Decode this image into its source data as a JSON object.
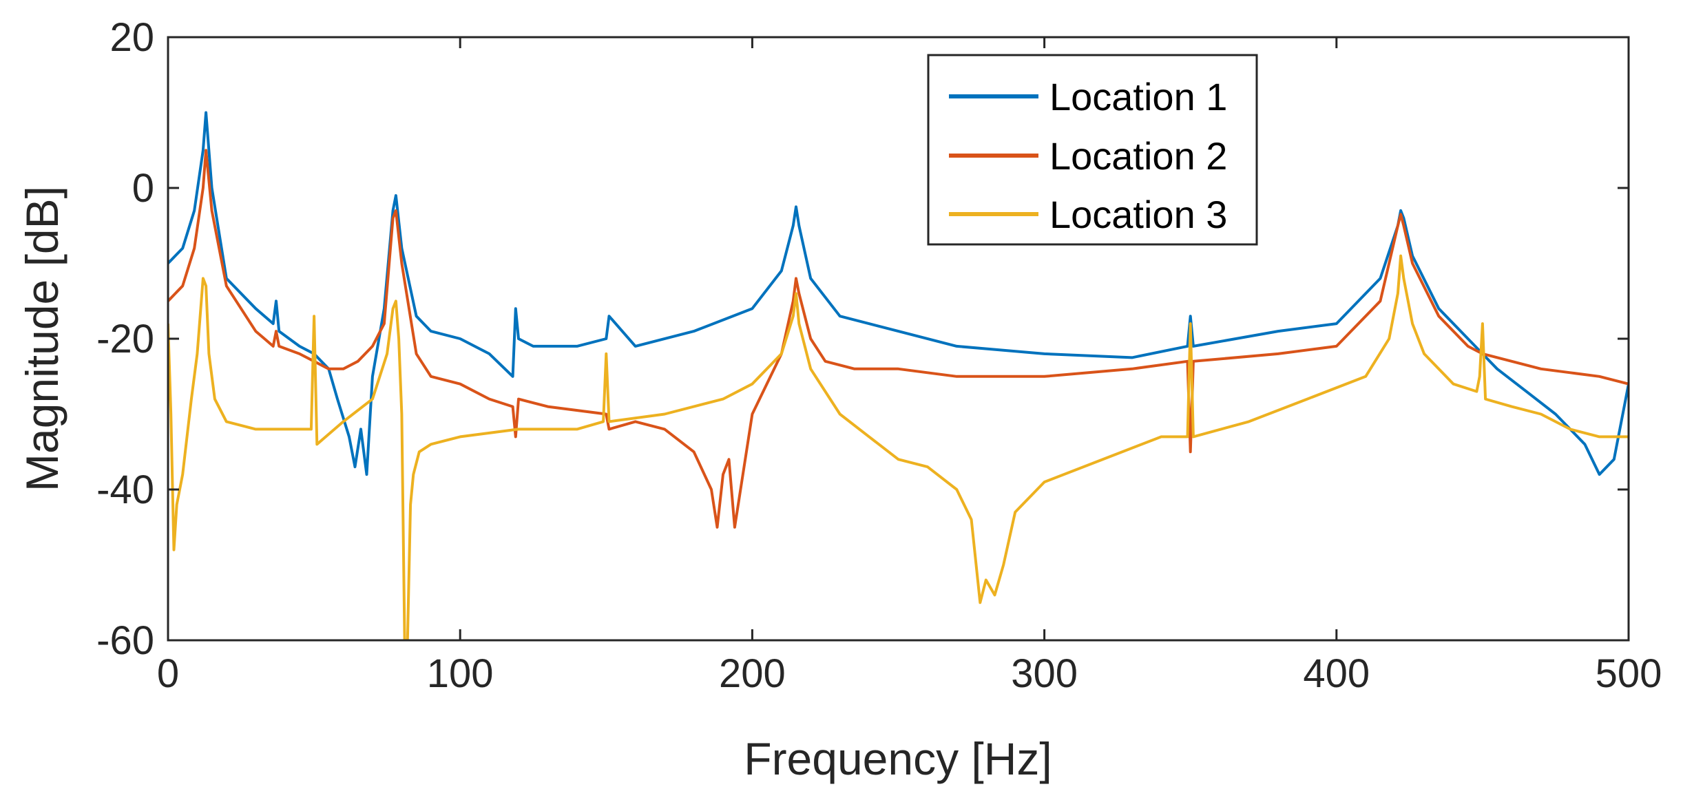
{
  "chart_data": {
    "type": "line",
    "xlabel": "Frequency [Hz]",
    "ylabel": "Magnitude [dB]",
    "xlim": [
      0,
      500
    ],
    "ylim": [
      -60,
      20
    ],
    "xticks": [
      0,
      100,
      200,
      300,
      400,
      500
    ],
    "yticks": [
      20,
      0,
      -20,
      -40,
      -60
    ],
    "xtick_labels": [
      "0",
      "100",
      "200",
      "300",
      "400",
      "500"
    ],
    "ytick_labels": [
      "20",
      "0",
      "-20",
      "-40",
      "-60"
    ],
    "grid": false,
    "legend_position": "top-right",
    "series": [
      {
        "name": "Location 1",
        "color": "#0072BD",
        "x": [
          0,
          5,
          9,
          12,
          13,
          15,
          20,
          30,
          36,
          37,
          38,
          45,
          50,
          55,
          58,
          62,
          64,
          66,
          68,
          70,
          74,
          77,
          78,
          80,
          85,
          90,
          100,
          110,
          118,
          119,
          120,
          125,
          140,
          150,
          151,
          160,
          180,
          200,
          210,
          214,
          215,
          216,
          220,
          230,
          250,
          270,
          300,
          330,
          349,
          350,
          351,
          380,
          400,
          415,
          421,
          422,
          423,
          426,
          435,
          445,
          455,
          465,
          475,
          480,
          485,
          490,
          495,
          500
        ],
        "y": [
          -10,
          -8,
          -3,
          5,
          10,
          0,
          -12,
          -16,
          -18,
          -15,
          -19,
          -21,
          -22,
          -24,
          -28,
          -33,
          -37,
          -32,
          -38,
          -25,
          -16,
          -3,
          -1,
          -8,
          -17,
          -19,
          -20,
          -22,
          -25,
          -16,
          -20,
          -21,
          -21,
          -20,
          -17,
          -21,
          -19,
          -16,
          -11,
          -5,
          -2.5,
          -5,
          -12,
          -17,
          -19,
          -21,
          -22,
          -22.5,
          -21,
          -17,
          -21,
          -19,
          -18,
          -12,
          -5,
          -3,
          -4,
          -9,
          -16,
          -20,
          -24,
          -27,
          -30,
          -32,
          -34,
          -38,
          -36,
          -26
        ]
      },
      {
        "name": "Location 2",
        "color": "#D95319",
        "x": [
          0,
          5,
          9,
          12,
          13,
          15,
          20,
          30,
          36,
          37,
          38,
          45,
          50,
          55,
          60,
          65,
          70,
          74,
          77,
          78,
          80,
          85,
          90,
          100,
          110,
          118,
          119,
          120,
          130,
          150,
          151,
          160,
          170,
          180,
          186,
          188,
          190,
          192,
          194,
          200,
          210,
          214,
          215,
          216,
          220,
          225,
          235,
          250,
          270,
          300,
          330,
          349,
          350,
          351,
          380,
          400,
          415,
          421,
          422,
          423,
          426,
          435,
          445,
          450,
          460,
          470,
          480,
          490,
          500
        ],
        "y": [
          -15,
          -13,
          -8,
          0,
          5,
          -3,
          -13,
          -19,
          -21,
          -19,
          -21,
          -22,
          -23,
          -24,
          -24,
          -23,
          -21,
          -18,
          -4,
          -3,
          -10,
          -22,
          -25,
          -26,
          -28,
          -29,
          -33,
          -28,
          -29,
          -30,
          -32,
          -31,
          -32,
          -35,
          -40,
          -45,
          -38,
          -36,
          -45,
          -30,
          -22,
          -15,
          -12,
          -14,
          -20,
          -23,
          -24,
          -24,
          -25,
          -25,
          -24,
          -23,
          -35,
          -23,
          -22,
          -21,
          -15,
          -5,
          -3.5,
          -5,
          -10,
          -17,
          -21,
          -22,
          -23,
          -24,
          -24.5,
          -25,
          -26
        ]
      },
      {
        "name": "Location 3",
        "color": "#EDB120",
        "x": [
          0,
          1,
          2,
          3,
          5,
          8,
          10,
          12,
          13,
          14,
          16,
          20,
          30,
          40,
          49,
          50,
          51,
          60,
          70,
          75,
          77,
          78,
          79,
          80,
          81,
          82,
          83,
          84,
          86,
          90,
          100,
          120,
          140,
          149,
          150,
          151,
          170,
          190,
          200,
          210,
          214,
          215,
          216,
          220,
          230,
          240,
          250,
          260,
          270,
          275,
          278,
          280,
          283,
          286,
          290,
          300,
          320,
          340,
          349,
          350,
          351,
          370,
          390,
          410,
          418,
          421,
          422,
          423,
          426,
          430,
          440,
          448,
          449,
          450,
          451,
          460,
          470,
          480,
          490,
          500
        ],
        "y": [
          -18,
          -30,
          -48,
          -42,
          -38,
          -28,
          -22,
          -12,
          -13,
          -22,
          -28,
          -31,
          -32,
          -32,
          -32,
          -17,
          -34,
          -31,
          -28,
          -22,
          -16,
          -15,
          -20,
          -30,
          -60,
          -60,
          -42,
          -38,
          -35,
          -34,
          -33,
          -32,
          -32,
          -31,
          -22,
          -31,
          -30,
          -28,
          -26,
          -22,
          -17,
          -14,
          -18,
          -24,
          -30,
          -33,
          -36,
          -37,
          -40,
          -44,
          -55,
          -52,
          -54,
          -50,
          -43,
          -39,
          -36,
          -33,
          -33,
          -18,
          -33,
          -31,
          -28,
          -25,
          -20,
          -14,
          -9,
          -12,
          -18,
          -22,
          -26,
          -27,
          -25,
          -18,
          -28,
          -29,
          -30,
          -32,
          -33,
          -33
        ]
      }
    ]
  }
}
